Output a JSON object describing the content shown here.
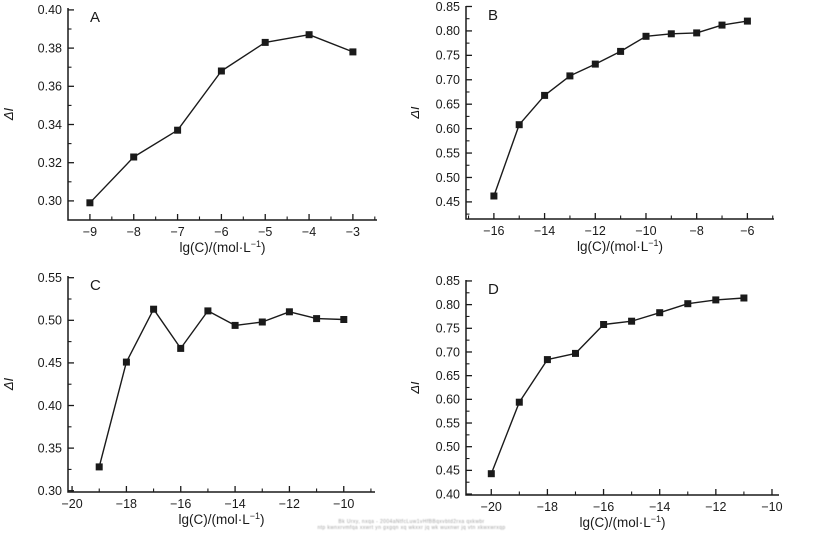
{
  "figure": {
    "background": "#ffffff",
    "ink_color": "#1a1a1a",
    "marker_style": "filled-square",
    "panel_letters": [
      "A",
      "B",
      "C",
      "D"
    ]
  },
  "chart_data": [
    {
      "type": "line",
      "panel": "A",
      "xlabel": "lg(C)/(mol·L⁻¹)",
      "xlabel_parts": {
        "pre": "lg(C)/(mol·L",
        "sup": "−1",
        "post": ")"
      },
      "ylabel": "ΔI",
      "x": [
        -9,
        -8,
        -7,
        -6,
        -5,
        -4,
        -3
      ],
      "y": [
        0.299,
        0.323,
        0.337,
        0.368,
        0.383,
        0.387,
        0.378
      ],
      "xlim": [
        -9.5,
        -2.45
      ],
      "ylim": [
        0.29,
        0.401
      ],
      "xticks": [
        "−9",
        "−8",
        "−7",
        "−6",
        "−5",
        "−4",
        "−3"
      ],
      "yticks": [
        "0.30",
        "0.32",
        "0.34",
        "0.36",
        "0.38",
        "0.40"
      ],
      "xminor_step": 0.5,
      "yminor_step": 0.01,
      "line_color": "#1a1a1a",
      "grid": false,
      "legend": null
    },
    {
      "type": "line",
      "panel": "B",
      "xlabel": "lg(C)/(mol·L⁻¹)",
      "xlabel_parts": {
        "pre": "lg(C)/(mol·L",
        "sup": "−1",
        "post": ")"
      },
      "ylabel": "ΔI",
      "x": [
        -16,
        -15,
        -14,
        -13,
        -12,
        -11,
        -10,
        -9,
        -8,
        -7,
        -6
      ],
      "y": [
        0.462,
        0.608,
        0.668,
        0.708,
        0.732,
        0.758,
        0.789,
        0.794,
        0.796,
        0.812,
        0.82
      ],
      "xlim": [
        -17.1,
        -4.95
      ],
      "ylim": [
        0.415,
        0.851
      ],
      "xticks": [
        "−16",
        "−14",
        "−12",
        "−10",
        "−8",
        "−6"
      ],
      "yticks": [
        "0.45",
        "0.50",
        "0.55",
        "0.60",
        "0.65",
        "0.70",
        "0.75",
        "0.80",
        "0.85"
      ],
      "xminor_step": 1,
      "yminor_step": 0.025,
      "line_color": "#1a1a1a",
      "grid": false,
      "legend": null
    },
    {
      "type": "line",
      "panel": "C",
      "xlabel": "lg(C)/(mol·L⁻¹)",
      "xlabel_parts": {
        "pre": "lg(C)/(mol·L",
        "sup": "−1",
        "post": ")"
      },
      "ylabel": "ΔI",
      "x": [
        -19,
        -18,
        -17,
        -16,
        -15,
        -14,
        -13,
        -12,
        -11,
        -10
      ],
      "y": [
        0.328,
        0.451,
        0.513,
        0.467,
        0.511,
        0.494,
        0.498,
        0.51,
        0.502,
        0.501
      ],
      "xlim": [
        -20.15,
        -8.85
      ],
      "ylim": [
        0.2985,
        0.552
      ],
      "xticks": [
        "−20",
        "−18",
        "−16",
        "−14",
        "−12",
        "−10"
      ],
      "yticks": [
        "0.30",
        "0.35",
        "0.40",
        "0.45",
        "0.50",
        "0.55"
      ],
      "xminor_step": 1,
      "yminor_step": 0.025,
      "line_color": "#1a1a1a",
      "grid": false,
      "legend": null
    },
    {
      "type": "line",
      "panel": "D",
      "xlabel": "lg(C)/(mol·L⁻¹)",
      "xlabel_parts": {
        "pre": "lg(C)/(mol·L",
        "sup": "−1",
        "post": ")"
      },
      "ylabel": "ΔI",
      "x": [
        -20,
        -19,
        -18,
        -17,
        -16,
        -15,
        -14,
        -13,
        -12,
        -11
      ],
      "y": [
        0.443,
        0.594,
        0.684,
        0.697,
        0.758,
        0.765,
        0.783,
        0.802,
        0.81,
        0.814
      ],
      "xlim": [
        -20.9,
        -9.75
      ],
      "ylim": [
        0.398,
        0.852
      ],
      "xticks": [
        "−20",
        "−18",
        "−16",
        "−14",
        "−12",
        "−10"
      ],
      "yticks": [
        "0.40",
        "0.45",
        "0.50",
        "0.55",
        "0.60",
        "0.65",
        "0.70",
        "0.75",
        "0.80",
        "0.85"
      ],
      "xminor_step": 1,
      "yminor_step": 0.025,
      "line_color": "#1a1a1a",
      "grid": false,
      "legend": null
    }
  ],
  "watermark": {
    "line1": "Bk Urxy, nxqa - 2004aNtfcLuw1vHfBBqxvbtd2rxa qxkwbr",
    "line2": "ntp kwnxrvmfqa xxwrt yn gxgqn xq wkxxr jq wk wuxnwr jq vtn xkwxwrxqp"
  }
}
